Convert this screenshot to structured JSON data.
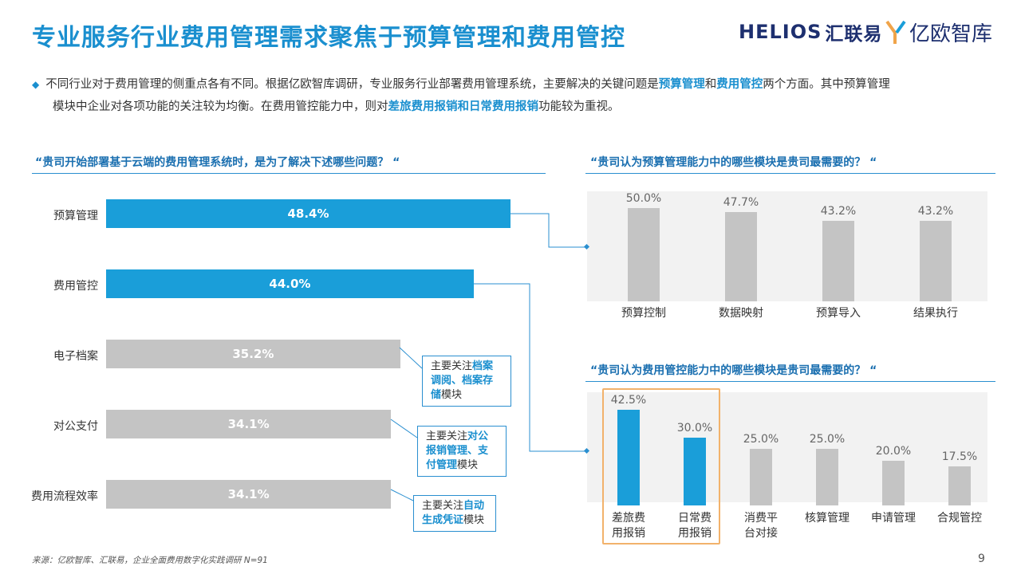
{
  "page": {
    "title": "专业服务行业费用管理需求聚焦于预算管理和费用管控",
    "logos": {
      "helios": "HELIOS",
      "helios_cn": "汇联易",
      "iyiou": "亿欧智库"
    },
    "intro": {
      "p1": "不同行业对于费用管理的侧重点各有不同。根据亿欧智库调研，专业服务行业部署费用管理系统，主要解决的关键问题是",
      "hl1": "预算管理",
      "p2": "和",
      "hl2": "费用管控",
      "p3": "两个方面。其中预算管理",
      "p4": "模块中企业对各项功能的关注较为均衡。在费用管控能力中，则对",
      "hl3": "差旅费用报销和日常费用报销",
      "p5": "功能较为重视。"
    },
    "source": "来源：亿欧智库、汇联易，企业全面费用数字化实践调研 N=91",
    "page_number": "9"
  },
  "callouts": {
    "archive": {
      "pre": "主要关注",
      "hl": "档案调阅、档案存储",
      "post": "模块"
    },
    "payment": {
      "pre": "主要关注",
      "hl": "对公报销管理、支付管理",
      "post": "模块"
    },
    "process": {
      "pre": "主要关注",
      "hl": "自动生成凭证",
      "post": "模块"
    }
  },
  "chart_data": [
    {
      "type": "bar",
      "orientation": "horizontal",
      "title": "“贵司开始部署基于云端的费用管理系统时，是为了解决下述哪些问题？ “",
      "categories": [
        "预算管理",
        "费用管控",
        "电子档案",
        "对公支付",
        "费用流程效率"
      ],
      "values": [
        48.4,
        44.0,
        35.2,
        34.1,
        34.1
      ],
      "labels": [
        "48.4%",
        "44.0%",
        "35.2%",
        "34.1%",
        "34.1%"
      ],
      "highlight": [
        "预算管理",
        "费用管控"
      ],
      "colors": {
        "highlight": "#1a9ed9",
        "normal": "#c4c4c4"
      }
    },
    {
      "type": "bar",
      "title": "“贵司认为预算管理能力中的哪些模块是贵司最需要的？ “",
      "categories": [
        "预算控制",
        "数据映射",
        "预算导入",
        "结果执行"
      ],
      "values": [
        50.0,
        47.7,
        43.2,
        43.2
      ],
      "labels": [
        "50.0%",
        "47.7%",
        "43.2%",
        "43.2%"
      ],
      "colors": {
        "normal": "#c4c4c4"
      }
    },
    {
      "type": "bar",
      "title": "“贵司认为费用管控能力中的哪些模块是贵司最需要的？ “",
      "categories": [
        "差旅费用报销",
        "日常费用报销",
        "消费平台对接",
        "核算管理",
        "申请管理",
        "合规管控"
      ],
      "category_lines": [
        [
          "差旅费",
          "用报销"
        ],
        [
          "日常费",
          "用报销"
        ],
        [
          "消费平",
          "台对接"
        ],
        [
          "核算管理"
        ],
        [
          "申请管理"
        ],
        [
          "合规管控"
        ]
      ],
      "values": [
        42.5,
        30.0,
        25.0,
        25.0,
        20.0,
        17.5
      ],
      "labels": [
        "42.5%",
        "30.0%",
        "25.0%",
        "25.0%",
        "20.0%",
        "17.5%"
      ],
      "highlight": [
        "差旅费用报销",
        "日常费用报销"
      ],
      "colors": {
        "highlight": "#1a9ed9",
        "normal": "#c4c4c4",
        "box": "#f2b26b"
      }
    }
  ]
}
